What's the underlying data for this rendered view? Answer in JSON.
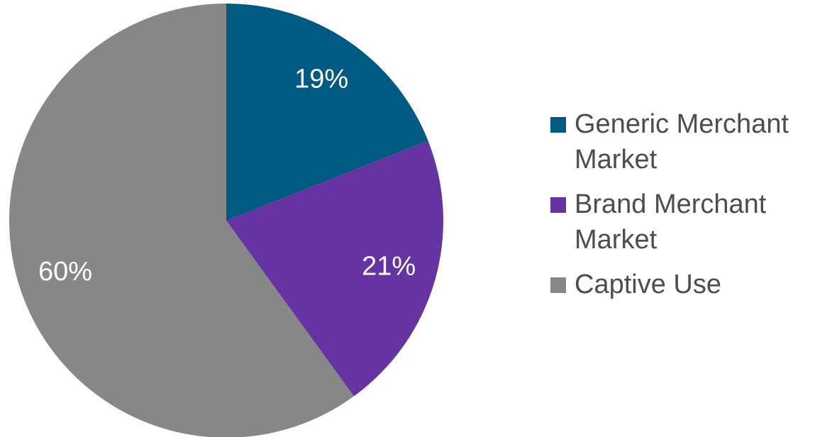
{
  "chart_data": {
    "type": "pie",
    "categories": [
      "Generic Merchant Market",
      "Brand Merchant Market",
      "Captive Use"
    ],
    "values": [
      19,
      21,
      60
    ],
    "value_labels": [
      "19%",
      "21%",
      "60%"
    ],
    "colors": [
      "#005a82",
      "#6633a3",
      "#878787"
    ],
    "legend": "right"
  }
}
